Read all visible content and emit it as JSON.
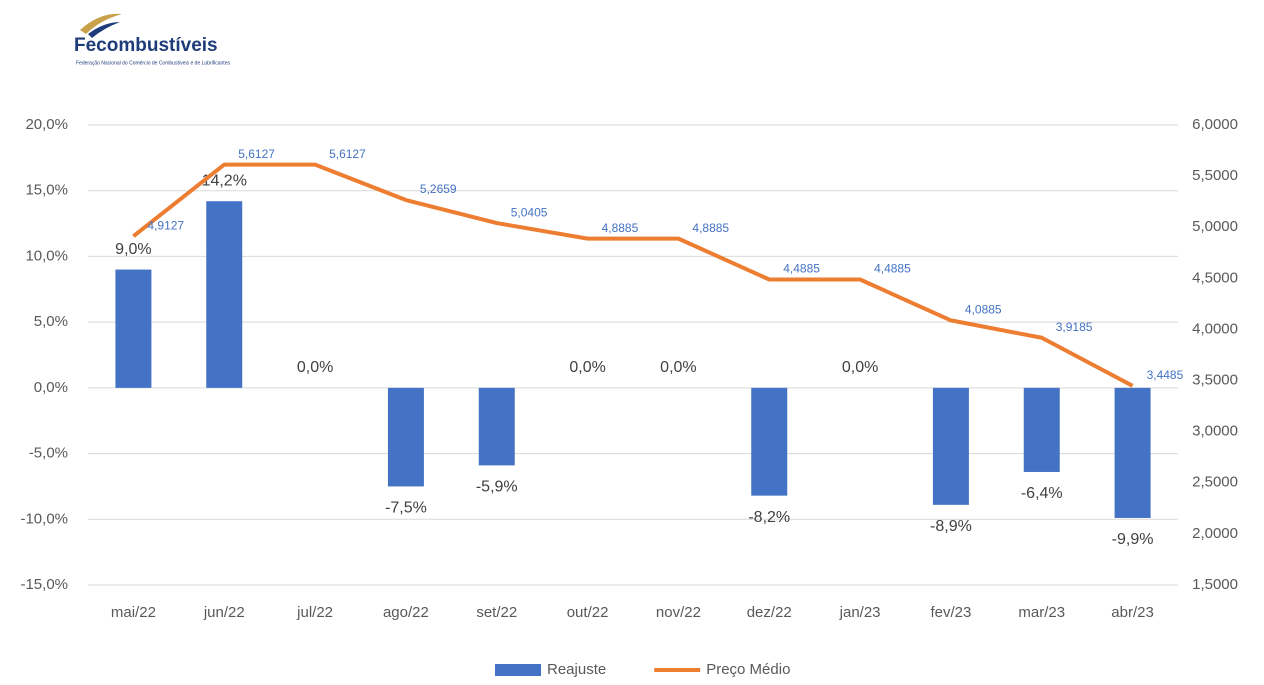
{
  "logo": {
    "name": "Fecombustíveis",
    "tagline": "Federação Nacional do Comércio de Combustíveis e de Lubrificantes"
  },
  "chart_data": {
    "type": "bar-line",
    "categories": [
      "mai/22",
      "jun/22",
      "jul/22",
      "ago/22",
      "set/22",
      "out/22",
      "nov/22",
      "dez/22",
      "jan/23",
      "fev/23",
      "mar/23",
      "abr/23"
    ],
    "series": [
      {
        "name": "Reajuste",
        "type": "bar",
        "color": "#4472c4",
        "axis": "y",
        "values": [
          9.0,
          14.2,
          0.0,
          -7.5,
          -5.9,
          0.0,
          0.0,
          -8.2,
          0.0,
          -8.9,
          -6.4,
          -9.9
        ],
        "value_labels": [
          "9,0%",
          "14,2%",
          "0,0%",
          "-7,5%",
          "-5,9%",
          "0,0%",
          "0,0%",
          "-8,2%",
          "0,0%",
          "-8,9%",
          "-6,4%",
          "-9,9%"
        ]
      },
      {
        "name": "Preço Médio",
        "type": "line",
        "color": "#ed7d31",
        "axis": "y2",
        "values": [
          4.9127,
          5.6127,
          5.6127,
          5.2659,
          5.0405,
          4.8885,
          4.8885,
          4.4885,
          4.4885,
          4.0885,
          3.9185,
          3.4485
        ],
        "value_labels": [
          "4,9127",
          "5,6127",
          "5,6127",
          "5,2659",
          "5,0405",
          "4,8885",
          "4,8885",
          "4,4885",
          "4,4885",
          "4,0885",
          "3,9185",
          "3,4485"
        ]
      }
    ],
    "ylim": [
      -15,
      20
    ],
    "yticks": [
      {
        "value": -15,
        "label": "-15,0%"
      },
      {
        "value": -10,
        "label": "-10,0%"
      },
      {
        "value": -5,
        "label": "-5,0%"
      },
      {
        "value": 0,
        "label": "0,0%"
      },
      {
        "value": 5,
        "label": "5,0%"
      },
      {
        "value": 10,
        "label": "10,0%"
      },
      {
        "value": 15,
        "label": "15,0%"
      },
      {
        "value": 20,
        "label": "20,0%"
      }
    ],
    "y2lim": [
      1.5,
      6.0
    ],
    "y2ticks": [
      {
        "value": 1.5,
        "label": "1,5000"
      },
      {
        "value": 2.0,
        "label": "2,0000"
      },
      {
        "value": 2.5,
        "label": "2,5000"
      },
      {
        "value": 3.0,
        "label": "3,0000"
      },
      {
        "value": 3.5,
        "label": "3,5000"
      },
      {
        "value": 4.0,
        "label": "4,0000"
      },
      {
        "value": 4.5,
        "label": "4,5000"
      },
      {
        "value": 5.0,
        "label": "5,0000"
      },
      {
        "value": 5.5,
        "label": "5,5000"
      },
      {
        "value": 6.0,
        "label": "6,0000"
      }
    ],
    "grid": true,
    "legend": "bottom"
  }
}
